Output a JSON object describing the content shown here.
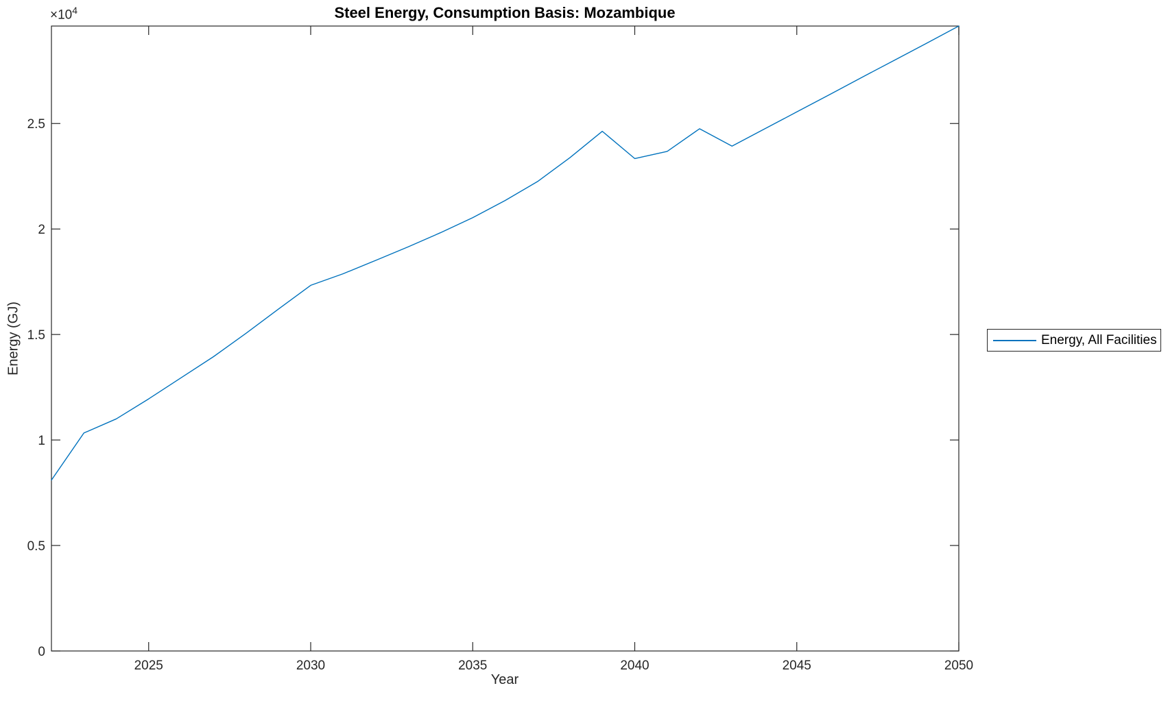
{
  "figure": {
    "title": "Steel Energy, Consumption Basis: Mozambique",
    "xlabel": "Year",
    "ylabel": "Energy (GJ)",
    "y_axis_multiplier": "×10",
    "y_axis_exponent": "4",
    "background_color": "#ffffff",
    "axes_color": "#262626",
    "title_color": "#000000"
  },
  "legend": {
    "label": "Energy, All Facilities",
    "border_color": "#262626",
    "sample_line_color": "#0072BD",
    "position": "right-outside-middle"
  },
  "chart_data": {
    "type": "line",
    "title": "Steel Energy, Consumption Basis: Mozambique",
    "xlabel": "Year",
    "ylabel": "Energy (GJ)",
    "y_unit_multiplier_label": "×10^4",
    "grid": false,
    "box": true,
    "tick_direction": "in",
    "xlim": [
      2022,
      2050
    ],
    "ylim": [
      0,
      29620
    ],
    "x_ticks": [
      {
        "value": 2025,
        "label": "2025"
      },
      {
        "value": 2030,
        "label": "2030"
      },
      {
        "value": 2035,
        "label": "2035"
      },
      {
        "value": 2040,
        "label": "2040"
      },
      {
        "value": 2045,
        "label": "2045"
      },
      {
        "value": 2050,
        "label": "2050"
      }
    ],
    "y_ticks": [
      {
        "value": 0,
        "label": "0"
      },
      {
        "value": 5000,
        "label": "0.5"
      },
      {
        "value": 10000,
        "label": "1"
      },
      {
        "value": 15000,
        "label": "1.5"
      },
      {
        "value": 20000,
        "label": "2"
      },
      {
        "value": 25000,
        "label": "2.5"
      }
    ],
    "legend_position": "east-outside",
    "series": [
      {
        "name": "Energy, All Facilities",
        "color": "#0072BD",
        "x": [
          2022,
          2023,
          2024,
          2025,
          2026,
          2027,
          2028,
          2029,
          2030,
          2031,
          2032,
          2033,
          2034,
          2035,
          2036,
          2037,
          2038,
          2039,
          2040,
          2041,
          2042,
          2043,
          2044,
          2045,
          2046,
          2047,
          2048,
          2049,
          2050
        ],
        "values": [
          8100,
          10330,
          11000,
          11950,
          12950,
          13950,
          15050,
          16200,
          17330,
          17880,
          18510,
          19150,
          19820,
          20540,
          21350,
          22250,
          23380,
          24630,
          23340,
          23680,
          24750,
          23930,
          24740,
          25550,
          26360,
          27180,
          27990,
          28800,
          29620
        ]
      }
    ]
  }
}
